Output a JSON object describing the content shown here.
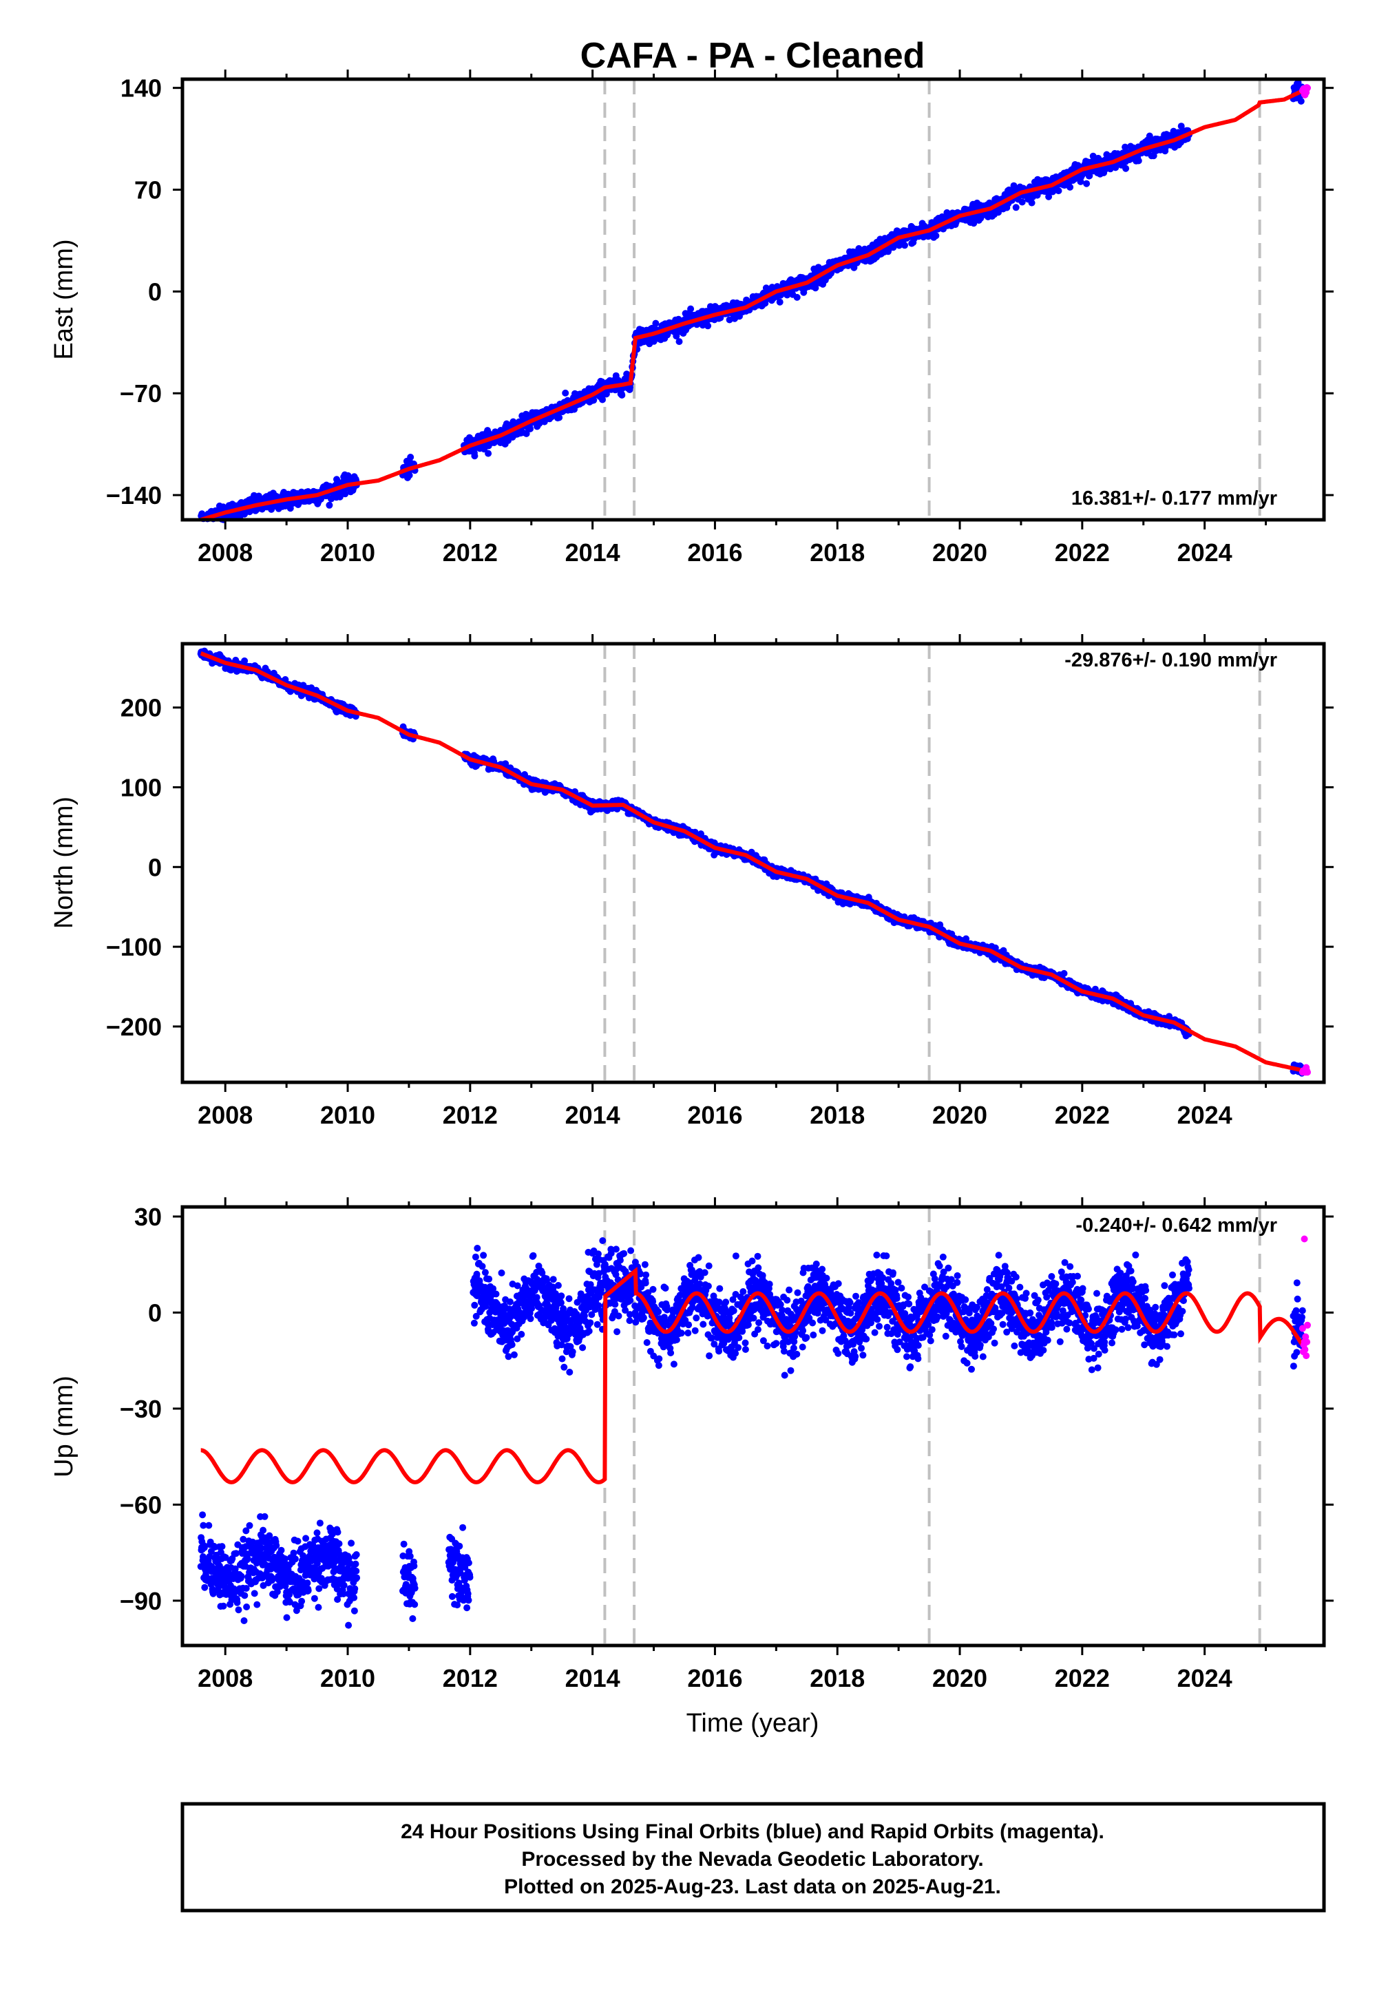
{
  "title": "CAFA  - PA - Cleaned",
  "colors": {
    "final": "#0000ff",
    "rapid": "#ff00ff",
    "model": "#ff0000",
    "events": "#c0c0c0"
  },
  "chart_data": [
    {
      "type": "scatter",
      "panel": "east",
      "ylabel": "East (mm)",
      "xlabel": "",
      "xlim": [
        2007.3,
        2025.95
      ],
      "ylim": [
        -157,
        146
      ],
      "yticks": [
        140,
        70,
        0,
        -70,
        -140
      ],
      "xticks": [
        2008,
        2010,
        2012,
        2014,
        2016,
        2018,
        2020,
        2022,
        2024
      ],
      "rate_text": "16.381+/- 0.177 mm/yr",
      "grid": false,
      "series": [
        {
          "type": "line",
          "points": [
            [
              2007.6,
              -157
            ],
            [
              2008.0,
              -152
            ],
            [
              2008.5,
              -147
            ],
            [
              2009.0,
              -143
            ],
            [
              2009.5,
              -140
            ],
            [
              2010.0,
              -133
            ],
            [
              2010.5,
              -130
            ],
            [
              2011.0,
              -122
            ],
            [
              2011.5,
              -116
            ],
            [
              2012.0,
              -106
            ],
            [
              2012.5,
              -99
            ],
            [
              2013.0,
              -89
            ],
            [
              2013.5,
              -80
            ],
            [
              2014.0,
              -71
            ],
            [
              2014.2,
              -66
            ],
            [
              2014.5,
              -64
            ],
            [
              2014.62,
              -63
            ],
            [
              2014.7,
              -32
            ],
            [
              2015.0,
              -29
            ],
            [
              2015.5,
              -22
            ],
            [
              2016.0,
              -16
            ],
            [
              2016.5,
              -11
            ],
            [
              2017.0,
              0
            ],
            [
              2017.5,
              6
            ],
            [
              2018.0,
              18
            ],
            [
              2018.5,
              25
            ],
            [
              2019.0,
              37
            ],
            [
              2019.5,
              42
            ],
            [
              2020.0,
              52
            ],
            [
              2020.5,
              57
            ],
            [
              2021.0,
              68
            ],
            [
              2021.5,
              73
            ],
            [
              2022.0,
              84
            ],
            [
              2022.5,
              89
            ],
            [
              2023.0,
              98
            ],
            [
              2023.5,
              104
            ],
            [
              2024.0,
              113
            ],
            [
              2024.5,
              118
            ],
            [
              2024.88,
              128
            ],
            [
              2024.9,
              130
            ],
            [
              2025.3,
              132
            ],
            [
              2025.6,
              138
            ]
          ]
        },
        {
          "type": "scatter-final",
          "segments": [
            [
              2007.6,
              2010.15
            ],
            [
              2010.9,
              2011.1
            ],
            [
              2011.9,
              2023.75
            ],
            [
              2025.45,
              2025.6
            ]
          ]
        },
        {
          "type": "scatter-rapid",
          "segments": [
            [
              2025.6,
              2025.68
            ]
          ]
        }
      ]
    },
    {
      "type": "scatter",
      "panel": "north",
      "ylabel": "North (mm)",
      "xlabel": "",
      "xlim": [
        2007.3,
        2025.95
      ],
      "ylim": [
        -270,
        280
      ],
      "yticks": [
        200,
        100,
        0,
        -100,
        -200
      ],
      "xticks": [
        2008,
        2010,
        2012,
        2014,
        2016,
        2018,
        2020,
        2022,
        2024
      ],
      "rate_text": "-29.876+/- 0.190 mm/yr",
      "grid": false,
      "series": [
        {
          "type": "line",
          "points": [
            [
              2007.6,
              268
            ],
            [
              2008.0,
              256
            ],
            [
              2008.5,
              247
            ],
            [
              2009.0,
              228
            ],
            [
              2009.5,
              215
            ],
            [
              2010.0,
              196
            ],
            [
              2010.5,
              187
            ],
            [
              2011.0,
              166
            ],
            [
              2011.5,
              156
            ],
            [
              2012.0,
              135
            ],
            [
              2012.5,
              125
            ],
            [
              2013.0,
              104
            ],
            [
              2013.5,
              97
            ],
            [
              2014.0,
              77
            ],
            [
              2014.5,
              78
            ],
            [
              2015.0,
              56
            ],
            [
              2015.5,
              45
            ],
            [
              2016.0,
              24
            ],
            [
              2016.5,
              15
            ],
            [
              2017.0,
              -6
            ],
            [
              2017.5,
              -15
            ],
            [
              2018.0,
              -36
            ],
            [
              2018.5,
              -45
            ],
            [
              2019.0,
              -66
            ],
            [
              2019.5,
              -75
            ],
            [
              2020.0,
              -96
            ],
            [
              2020.5,
              -105
            ],
            [
              2021.0,
              -126
            ],
            [
              2021.5,
              -135
            ],
            [
              2022.0,
              -156
            ],
            [
              2022.5,
              -165
            ],
            [
              2023.0,
              -186
            ],
            [
              2023.5,
              -195
            ],
            [
              2024.0,
              -216
            ],
            [
              2024.5,
              -225
            ],
            [
              2025.0,
              -245
            ],
            [
              2025.6,
              -255
            ]
          ]
        },
        {
          "type": "scatter-final",
          "segments": [
            [
              2007.6,
              2010.15
            ],
            [
              2010.9,
              2011.1
            ],
            [
              2011.9,
              2023.75
            ],
            [
              2025.45,
              2025.6
            ]
          ]
        },
        {
          "type": "scatter-rapid",
          "segments": [
            [
              2025.6,
              2025.68
            ]
          ]
        }
      ]
    },
    {
      "type": "scatter",
      "panel": "up",
      "ylabel": "Up (mm)",
      "xlabel": "Time (year)",
      "xlim": [
        2007.3,
        2025.95
      ],
      "ylim": [
        -104,
        33
      ],
      "yticks": [
        30,
        0,
        -30,
        -60,
        -90
      ],
      "xticks": [
        2008,
        2010,
        2012,
        2014,
        2016,
        2018,
        2020,
        2022,
        2024
      ],
      "rate_text": "-0.240+/- 0.642 mm/yr",
      "grid": false,
      "series": [
        {
          "type": "line",
          "model": "offset-plus-annual",
          "pre_offset_mean": -48,
          "pre_offset_amplitude": 5,
          "offset_epoch": 2014.2,
          "post_offset_mean": 0,
          "post_offset_amplitude": 6,
          "second_offset_epoch": 2024.9,
          "second_offset_mean": -8
        },
        {
          "type": "scatter-final",
          "segments": [
            [
              2007.6,
              2010.15
            ],
            [
              2010.9,
              2011.1
            ],
            [
              2011.65,
              2012.0
            ],
            [
              2012.05,
              2023.75
            ],
            [
              2025.45,
              2025.6
            ]
          ]
        },
        {
          "type": "scatter-rapid",
          "segments": [
            [
              2025.6,
              2025.68
            ]
          ],
          "outlier": [
            2025.63,
            23
          ]
        }
      ]
    }
  ],
  "events": [
    2014.2,
    2014.68,
    2019.5,
    2024.9
  ],
  "footer": {
    "line1": "24 Hour Positions Using Final Orbits (blue) and Rapid Orbits (magenta).",
    "line2": "Processed by the Nevada Geodetic Laboratory.",
    "line3": "Plotted on 2025-Aug-23. Last data on 2025-Aug-21."
  }
}
